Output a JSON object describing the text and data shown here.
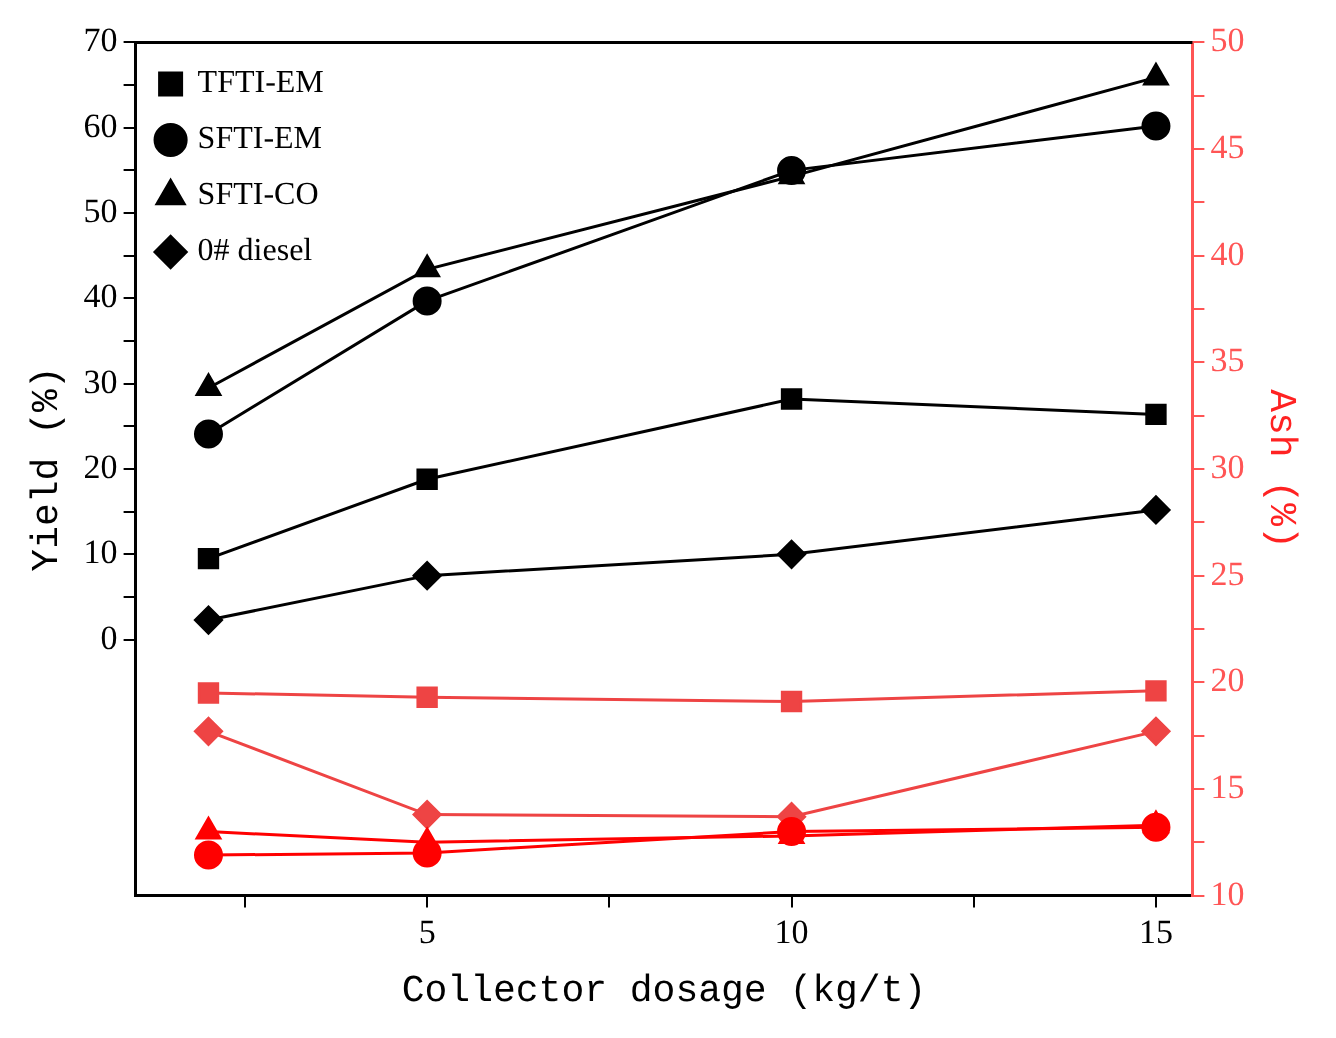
{
  "chart_data": {
    "type": "line",
    "xlabel": "Collector dosage (kg/t)",
    "ylabel": "Yield (%)",
    "y2label": "Ash (%)",
    "x": [
      2,
      5,
      10,
      15
    ],
    "xlim": [
      1,
      15.5
    ],
    "xticks": [
      {
        "value": 2.5,
        "label": null
      },
      5,
      {
        "value": 7.5,
        "label": null
      },
      10,
      {
        "value": 12.5,
        "label": null
      },
      15
    ],
    "ylim": [
      -30,
      70
    ],
    "yticks": [
      0,
      {
        "value": 5,
        "label": null
      },
      10,
      {
        "value": 15,
        "label": null
      },
      20,
      {
        "value": 25,
        "label": null
      },
      30,
      {
        "value": 35,
        "label": null
      },
      40,
      {
        "value": 45,
        "label": null
      },
      50,
      {
        "value": 55,
        "label": null
      },
      60,
      {
        "value": 65,
        "label": null
      },
      70
    ],
    "y2lim": [
      10,
      50
    ],
    "y2ticks": [
      10,
      {
        "value": 12.5,
        "label": null
      },
      15,
      {
        "value": 17.5,
        "label": null
      },
      20,
      {
        "value": 22.5,
        "label": null
      },
      25,
      {
        "value": 27.5,
        "label": null
      },
      30,
      {
        "value": 32.5,
        "label": null
      },
      35,
      {
        "value": 37.5,
        "label": null
      },
      40,
      {
        "value": 42.5,
        "label": null
      },
      45,
      {
        "value": 47.5,
        "label": null
      },
      50
    ],
    "legend": "top left",
    "series": [
      {
        "name": "TFTI-EM",
        "color": "#000000",
        "marker": "square",
        "values": [
          9.5,
          18.8,
          28.2,
          26.4
        ]
      },
      {
        "name": "SFTI-EM",
        "color": "#000000",
        "marker": "circle",
        "values": [
          24.1,
          39.7,
          55,
          60.2
        ]
      },
      {
        "name": "SFTI-CO",
        "color": "#000000",
        "marker": "triangle",
        "values": [
          29.5,
          43.4,
          54.3,
          65.9
        ]
      },
      {
        "name": "0# diesel",
        "color": "#000000",
        "marker": "diamond",
        "values": [
          2.3,
          7.5,
          10,
          15.2
        ]
      },
      {
        "color": "#ee4444",
        "marker": "square",
        "axis": "y2",
        "values": [
          19.5,
          19.3,
          19.1,
          19.6
        ]
      },
      {
        "color": "#ff0000",
        "marker": "circle",
        "axis": "y2",
        "values": [
          11.9,
          12,
          13,
          13.2
        ]
      },
      {
        "color": "#ff0000",
        "marker": "triangle",
        "axis": "y2",
        "values": [
          13,
          12.5,
          12.8,
          13.3
        ]
      },
      {
        "color": "#ee4444",
        "marker": "diamond",
        "axis": "y2",
        "values": [
          17.7,
          13.8,
          13.7,
          17.7
        ]
      }
    ]
  }
}
